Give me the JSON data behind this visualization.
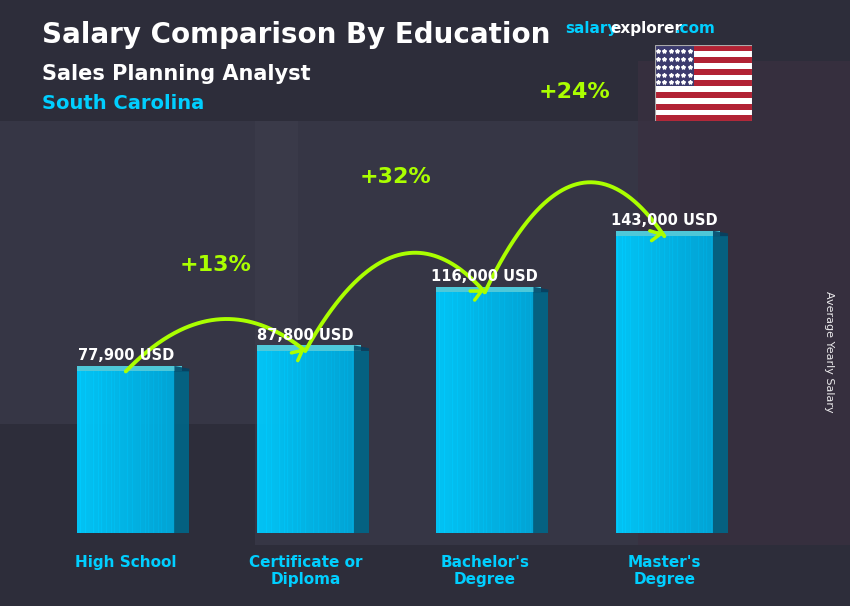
{
  "title_main": "Salary Comparison By Education",
  "subtitle1": "Sales Planning Analyst",
  "subtitle2": "South Carolina",
  "ylabel": "Average Yearly Salary",
  "categories": [
    "High School",
    "Certificate or\nDiploma",
    "Bachelor's\nDegree",
    "Master's\nDegree"
  ],
  "values": [
    77900,
    87800,
    116000,
    143000
  ],
  "value_labels": [
    "77,900 USD",
    "87,800 USD",
    "116,000 USD",
    "143,000 USD"
  ],
  "pct_labels": [
    "+13%",
    "+32%",
    "+24%"
  ],
  "bar_color_light": "#00d4ff",
  "bar_color_dark": "#0099cc",
  "bar_side_color": "#006688",
  "bg_color": "#3a3a4a",
  "text_color_white": "#ffffff",
  "text_color_cyan": "#00cfff",
  "text_color_green": "#aaff00",
  "salary_color": "#00cfff",
  "arrow_color": "#aaff00",
  "ylim_max": 175000,
  "bar_positions": [
    0.5,
    1.7,
    2.9,
    4.1
  ],
  "bar_width": 0.65
}
